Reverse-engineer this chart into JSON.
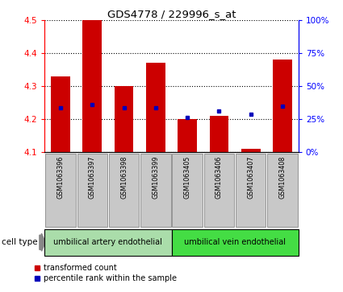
{
  "title": "GDS4778 / 229996_s_at",
  "samples": [
    "GSM1063396",
    "GSM1063397",
    "GSM1063398",
    "GSM1063399",
    "GSM1063405",
    "GSM1063406",
    "GSM1063407",
    "GSM1063408"
  ],
  "red_values": [
    4.33,
    4.5,
    4.3,
    4.37,
    4.2,
    4.21,
    4.11,
    4.38
  ],
  "blue_values": [
    4.235,
    4.245,
    4.235,
    4.235,
    4.205,
    4.225,
    4.215,
    4.24
  ],
  "y_min": 4.1,
  "y_max": 4.5,
  "y_ticks": [
    4.1,
    4.2,
    4.3,
    4.4,
    4.5
  ],
  "right_y_ticks": [
    0,
    25,
    50,
    75,
    100
  ],
  "right_y_labels": [
    "0%",
    "25%",
    "50%",
    "75%",
    "100%"
  ],
  "group1_label": "umbilical artery endothelial",
  "group2_label": "umbilical vein endothelial",
  "group1_count": 4,
  "group2_count": 4,
  "legend_red": "transformed count",
  "legend_blue": "percentile rank within the sample",
  "cell_type_label": "cell type",
  "bar_color": "#CC0000",
  "blue_color": "#0000BB",
  "group1_color": "#aaddaa",
  "group2_color": "#44dd44",
  "bg_gray": "#C8C8C8",
  "line_base": 4.1,
  "fig_width": 4.25,
  "fig_height": 3.63,
  "dpi": 100
}
